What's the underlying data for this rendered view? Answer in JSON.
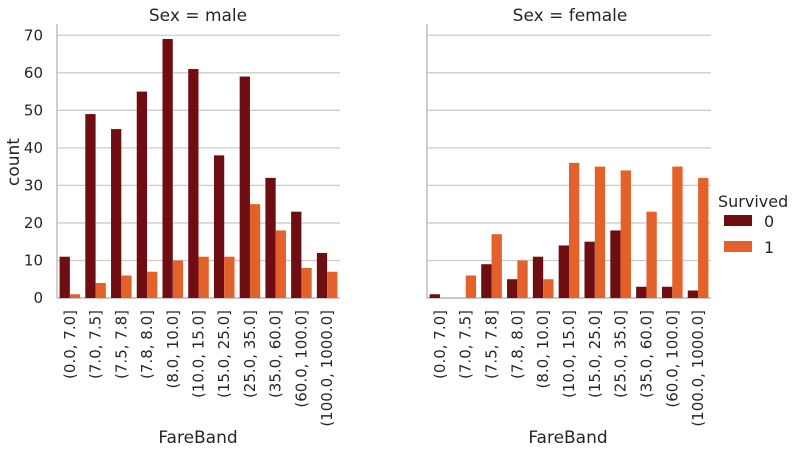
{
  "chart_data": [
    {
      "type": "bar",
      "title": "Sex = male",
      "xlabel": "FareBand",
      "ylabel": "count",
      "ylim": [
        0,
        73
      ],
      "yticks": [
        "0",
        "10",
        "20",
        "30",
        "40",
        "50",
        "60",
        "70"
      ],
      "grid": true,
      "categories": [
        "(0.0, 7.0]",
        "(7.0, 7.5]",
        "(7.5, 7.8]",
        "(7.8, 8.0]",
        "(8.0, 10.0]",
        "(10.0, 15.0]",
        "(15.0, 25.0]",
        "(25.0, 35.0]",
        "(35.0, 60.0]",
        "(60.0, 100.0]",
        "(100.0, 1000.0]"
      ],
      "series": [
        {
          "name": "0",
          "color": "#6e0e12",
          "values": [
            11,
            49,
            45,
            55,
            69,
            61,
            38,
            59,
            32,
            23,
            12
          ]
        },
        {
          "name": "1",
          "color": "#e3622b",
          "values": [
            1,
            4,
            6,
            7,
            10,
            11,
            11,
            25,
            18,
            8,
            7
          ]
        }
      ]
    },
    {
      "type": "bar",
      "title": "Sex = female",
      "xlabel": "FareBand",
      "ylabel": "",
      "ylim": [
        0,
        73
      ],
      "yticks": [
        "0",
        "10",
        "20",
        "30",
        "40",
        "50",
        "60",
        "70"
      ],
      "grid": true,
      "categories": [
        "(0.0, 7.0]",
        "(7.0, 7.5]",
        "(7.5, 7.8]",
        "(7.8, 8.0]",
        "(8.0, 10.0]",
        "(10.0, 15.0]",
        "(15.0, 25.0]",
        "(25.0, 35.0]",
        "(35.0, 60.0]",
        "(60.0, 100.0]",
        "(100.0, 1000.0]"
      ],
      "series": [
        {
          "name": "0",
          "color": "#6e0e12",
          "values": [
            1,
            0,
            9,
            5,
            11,
            14,
            15,
            18,
            3,
            3,
            2
          ]
        },
        {
          "name": "1",
          "color": "#e3622b",
          "values": [
            0,
            6,
            17,
            10,
            5,
            36,
            35,
            34,
            23,
            35,
            32
          ]
        }
      ]
    }
  ],
  "legend": {
    "title": "Survived",
    "placement": "right",
    "items": [
      {
        "label": "0",
        "color": "#6e0e12"
      },
      {
        "label": "1",
        "color": "#e3622b"
      }
    ]
  }
}
